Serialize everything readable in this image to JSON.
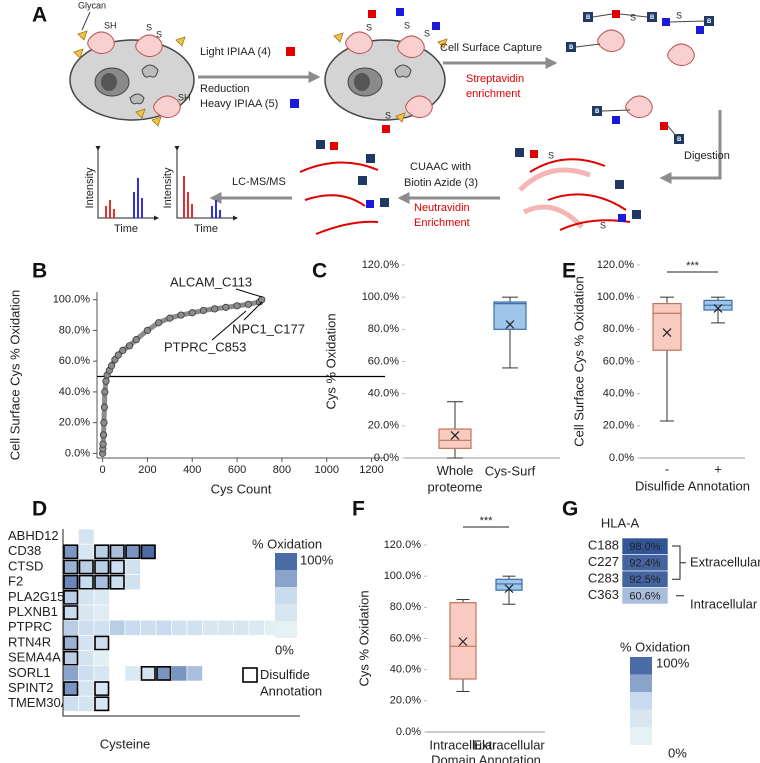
{
  "diagram": {
    "panel": "A",
    "glycan": "Glycan",
    "sh": "SH",
    "s": "S",
    "light": "Light IPIAA (4)",
    "reduction": "Reduction",
    "heavy": "Heavy IPIAA (5)",
    "capture": "Cell Surface Capture",
    "strep1": "Streptavidin",
    "strep2": "enrichment",
    "digestion": "Digestion",
    "cuaac1": "CUAAC with",
    "cuaac2": "Biotin Azide (3)",
    "neutr1": "Neutravidin",
    "neutr2": "Enrichment",
    "lcms": "LC-MS/MS",
    "intensity": "Intensity",
    "time": "Time",
    "biotin": "B"
  },
  "chart_data": [
    {
      "type": "line",
      "panel": "B",
      "xlabel": "Cys Count",
      "ylabel": "Cell Surface Cys % Oxidation",
      "color": "#8c8c8c",
      "x": [
        0,
        1,
        2,
        4,
        6,
        8,
        10,
        15,
        20,
        30,
        40,
        55,
        70,
        90,
        120,
        150,
        200,
        250,
        300,
        350,
        400,
        450,
        500,
        550,
        600,
        650,
        700,
        710
      ],
      "y": [
        0,
        3,
        6,
        12,
        20,
        30,
        40,
        47,
        51,
        54,
        57,
        61,
        64,
        67,
        70,
        74,
        80,
        85,
        88,
        90,
        91.5,
        93,
        94,
        95,
        96,
        97,
        98.5,
        100
      ],
      "xlim": [
        -25,
        1260
      ],
      "ylim": [
        -3,
        105
      ],
      "xticks": [
        0,
        200,
        400,
        600,
        800,
        1000,
        1200
      ],
      "yticks": [
        {
          "value": 0,
          "label": "0.0%"
        },
        {
          "value": 20,
          "label": "20.0%"
        },
        {
          "value": 40,
          "label": "40.0%"
        },
        {
          "value": 60,
          "label": "60.0%"
        },
        {
          "value": 80,
          "label": "80.0%"
        },
        {
          "value": 100,
          "label": "100.0%"
        }
      ],
      "reference_line": 50,
      "annotations": [
        "ALCAM_C113",
        "NPC1_C177",
        "PTPRC_C853"
      ]
    },
    {
      "type": "box",
      "panel": "C",
      "ylabel": "Cys % Oxidation",
      "categories": [
        "Whole proteome",
        "Cys-Surf"
      ],
      "boxes": [
        {
          "min": 0,
          "q1": 6,
          "median": 11,
          "q3": 18,
          "max": 35,
          "mean": 14
        },
        {
          "min": 56,
          "q1": 80,
          "median": 96,
          "q3": 97,
          "max": 100,
          "mean": 83
        }
      ],
      "fill_colors": [
        "#f8cbc0",
        "#9fc5e8"
      ],
      "edge_colors": [
        "#c0735f",
        "#3d6fa8"
      ],
      "ylim": [
        0,
        120
      ],
      "yticks": [
        {
          "value": 0,
          "label": "0.0%"
        },
        {
          "value": 20,
          "label": "20.0%"
        },
        {
          "value": 40,
          "label": "40.0%"
        },
        {
          "value": 60,
          "label": "60.0%"
        },
        {
          "value": 80,
          "label": "80.0%"
        },
        {
          "value": 100,
          "label": "100.0%"
        },
        {
          "value": 120,
          "label": "120.0%"
        }
      ]
    },
    {
      "type": "heatmap",
      "panel": "D",
      "xlabel": "Cysteine",
      "rows": [
        "ABHD12",
        "CD38",
        "CTSD",
        "F2",
        "PLA2G15",
        "PLXNB1",
        "PTPRC",
        "RTN4R",
        "SEMA4A",
        "SORL1",
        "SPINT2",
        "TMEM30A"
      ],
      "values": [
        [
          null,
          35
        ],
        [
          75,
          30,
          55,
          60,
          75,
          90
        ],
        [
          65,
          55,
          55,
          45,
          40
        ],
        [
          80,
          50,
          60,
          45,
          40
        ],
        [
          55,
          35,
          25
        ],
        [
          50,
          30,
          20
        ],
        [
          55,
          45,
          40,
          55,
          50,
          45,
          50,
          40,
          40,
          30,
          30,
          30,
          25,
          15
        ],
        [
          65,
          35,
          45
        ],
        [
          55,
          35,
          15
        ],
        [
          70,
          45,
          30,
          null,
          25,
          35,
          75,
          75,
          60
        ],
        [
          75,
          35,
          30
        ],
        [
          45,
          35,
          30
        ]
      ],
      "outlined": [
        [],
        [
          0,
          2,
          3,
          4,
          5
        ],
        [
          0,
          1,
          2,
          3
        ],
        [
          0,
          1,
          2,
          3
        ],
        [
          0
        ],
        [
          0
        ],
        [],
        [
          0,
          2
        ],
        [
          0
        ],
        [
          5,
          6
        ],
        [
          0,
          2
        ],
        [
          2
        ]
      ],
      "colorscale": [
        "#edf7f6",
        "#c9dbee",
        "#2c4f93"
      ],
      "colorbar": {
        "title": "% Oxidation",
        "ticks": [
          {
            "value": 100,
            "label": "100%"
          },
          {
            "value": 0,
            "label": "0%"
          }
        ]
      },
      "outline_legend": "Disulfide Annotation"
    },
    {
      "type": "box",
      "panel": "E",
      "ylabel": "Cell Surface Cys % Oxidation",
      "xlabel": "Disulfide Annotation",
      "categories": [
        "-",
        "+"
      ],
      "boxes": [
        {
          "min": 23,
          "q1": 67,
          "median": 90,
          "q3": 96,
          "max": 100,
          "mean": 78
        },
        {
          "min": 84,
          "q1": 92,
          "median": 95,
          "q3": 98,
          "max": 100,
          "mean": 93
        }
      ],
      "fill_colors": [
        "#f8cbc0",
        "#9fc5e8"
      ],
      "edge_colors": [
        "#c0735f",
        "#3d6fa8"
      ],
      "significance": "***",
      "ylim": [
        0,
        120
      ],
      "yticks": [
        {
          "value": 0,
          "label": "0.0%"
        },
        {
          "value": 20,
          "label": "20.0%"
        },
        {
          "value": 40,
          "label": "40.0%"
        },
        {
          "value": 60,
          "label": "60.0%"
        },
        {
          "value": 80,
          "label": "80.0%"
        },
        {
          "value": 100,
          "label": "100.0%"
        },
        {
          "value": 120,
          "label": "120.0%"
        }
      ]
    },
    {
      "type": "box",
      "panel": "F",
      "ylabel": "Cys % Oxidation",
      "xlabel": "Domain Annotation",
      "categories": [
        "Intracellular",
        "Extracellular"
      ],
      "boxes": [
        {
          "min": 26,
          "q1": 34,
          "median": 55,
          "q3": 83,
          "max": 85,
          "mean": 58
        },
        {
          "min": 82,
          "q1": 91,
          "median": 95,
          "q3": 98,
          "max": 100,
          "mean": 92
        }
      ],
      "fill_colors": [
        "#f8cbc0",
        "#9fc5e8"
      ],
      "edge_colors": [
        "#c0735f",
        "#3d6fa8"
      ],
      "significance": "***",
      "ylim": [
        0,
        120
      ],
      "yticks": [
        {
          "value": 0,
          "label": "0.0%"
        },
        {
          "value": 20,
          "label": "20.0%"
        },
        {
          "value": 40,
          "label": "40.0%"
        },
        {
          "value": 60,
          "label": "60.0%"
        },
        {
          "value": 80,
          "label": "80.0%"
        },
        {
          "value": 100,
          "label": "100.0%"
        },
        {
          "value": 120,
          "label": "120.0%"
        }
      ]
    },
    {
      "type": "heatmap",
      "panel": "G",
      "title": "HLA-A",
      "rows": [
        "C188",
        "C227",
        "C283",
        "C363"
      ],
      "values": [
        [
          98.0
        ],
        [
          92.4
        ],
        [
          92.5
        ],
        [
          60.6
        ]
      ],
      "value_labels": [
        [
          "98.0%"
        ],
        [
          "92.4%"
        ],
        [
          "92.5%"
        ],
        [
          "60.6%"
        ]
      ],
      "annotations": [
        "Extracellular",
        "Intracellular"
      ],
      "colorscale": [
        "#edf7f6",
        "#c9dbee",
        "#2c4f93"
      ],
      "colorbar": {
        "title": "% Oxidation",
        "ticks": [
          {
            "value": 100,
            "label": "100%"
          },
          {
            "value": 0,
            "label": "0%"
          }
        ]
      }
    }
  ]
}
